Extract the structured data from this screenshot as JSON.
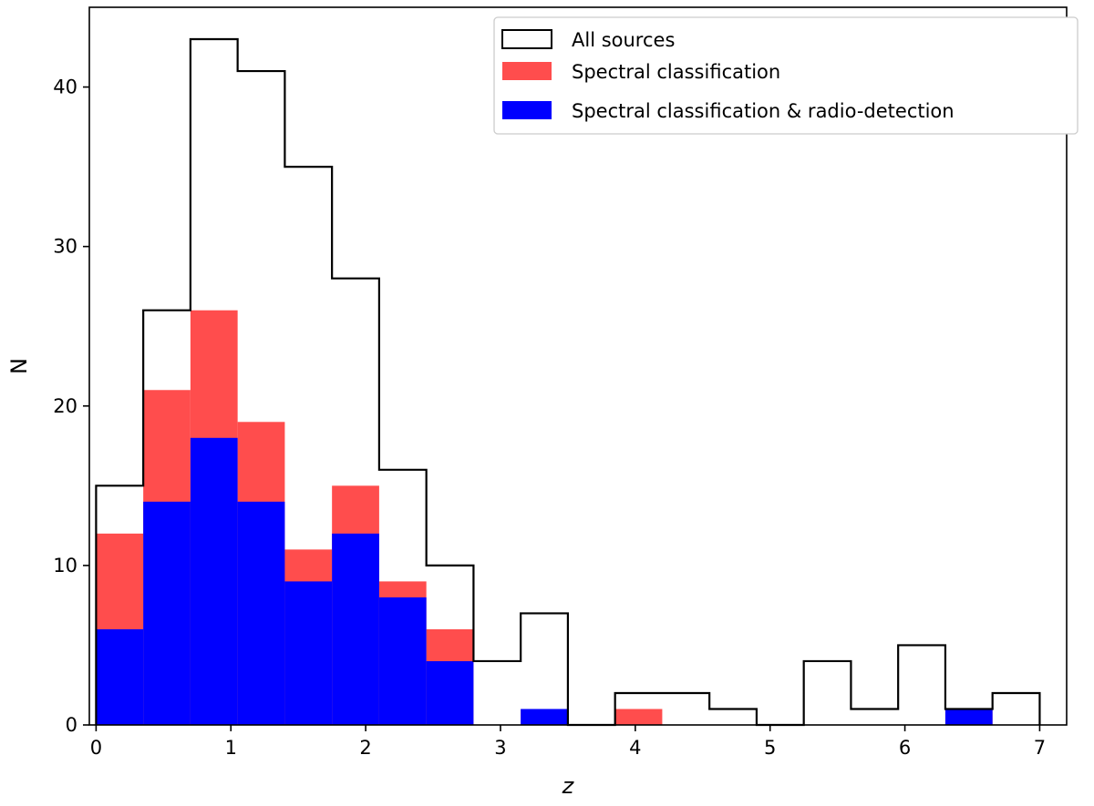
{
  "chart_data": {
    "type": "histogram",
    "xlabel": "z",
    "ylabel": "N",
    "xlim": [
      -0.05,
      7.2
    ],
    "ylim": [
      0,
      45
    ],
    "xticks": [
      0,
      1,
      2,
      3,
      4,
      5,
      6,
      7
    ],
    "yticks": [
      0,
      10,
      20,
      30,
      40
    ],
    "bin_edges": [
      0,
      0.35,
      0.7,
      1.05,
      1.4,
      1.75,
      2.1,
      2.45,
      2.8,
      3.15,
      3.5,
      3.85,
      4.2,
      4.55,
      4.9,
      5.25,
      5.6,
      5.95,
      6.3,
      6.65,
      7.0
    ],
    "legend_position": "top-right",
    "series": [
      {
        "name": "All sources",
        "style": "step-outline",
        "color": "#000000",
        "values": [
          15,
          26,
          43,
          41,
          35,
          28,
          16,
          10,
          4,
          7,
          0,
          2,
          2,
          1,
          0,
          4,
          1,
          5,
          1,
          2
        ]
      },
      {
        "name": "Spectral classification",
        "style": "filled",
        "color": "#ff4d4d",
        "values": [
          12,
          21,
          26,
          19,
          11,
          15,
          9,
          6,
          0,
          1,
          0,
          1,
          0,
          0,
          0,
          0,
          0,
          0,
          1,
          0
        ]
      },
      {
        "name": "Spectral classification & radio-detection",
        "style": "filled",
        "color": "#0000ff",
        "values": [
          6,
          14,
          18,
          14,
          9,
          12,
          8,
          4,
          0,
          1,
          0,
          0,
          0,
          0,
          0,
          0,
          0,
          0,
          1,
          0
        ]
      }
    ]
  }
}
